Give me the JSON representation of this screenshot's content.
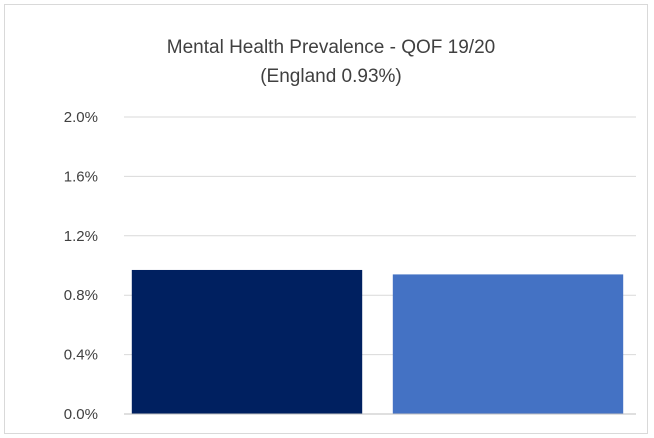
{
  "chart_data": {
    "type": "bar",
    "title": "Mental Health Prevalence - QOF 19/20",
    "subtitle": "(England 0.93%)",
    "xlabel": "",
    "ylabel": "",
    "categories": [
      "",
      ""
    ],
    "values": [
      0.97,
      0.94
    ],
    "ylim": [
      0,
      2.0
    ],
    "yticks": [
      "0.0%",
      "0.4%",
      "0.8%",
      "1.2%",
      "1.6%",
      "2.0%"
    ],
    "ytick_values": [
      0,
      0.4,
      0.8,
      1.2,
      1.6,
      2.0
    ],
    "grid": true,
    "legend": "none",
    "colors": [
      "#002060",
      "#4472c4"
    ],
    "gridline_color": "#d9d9d9",
    "axis_color": "#bfbfbf"
  }
}
